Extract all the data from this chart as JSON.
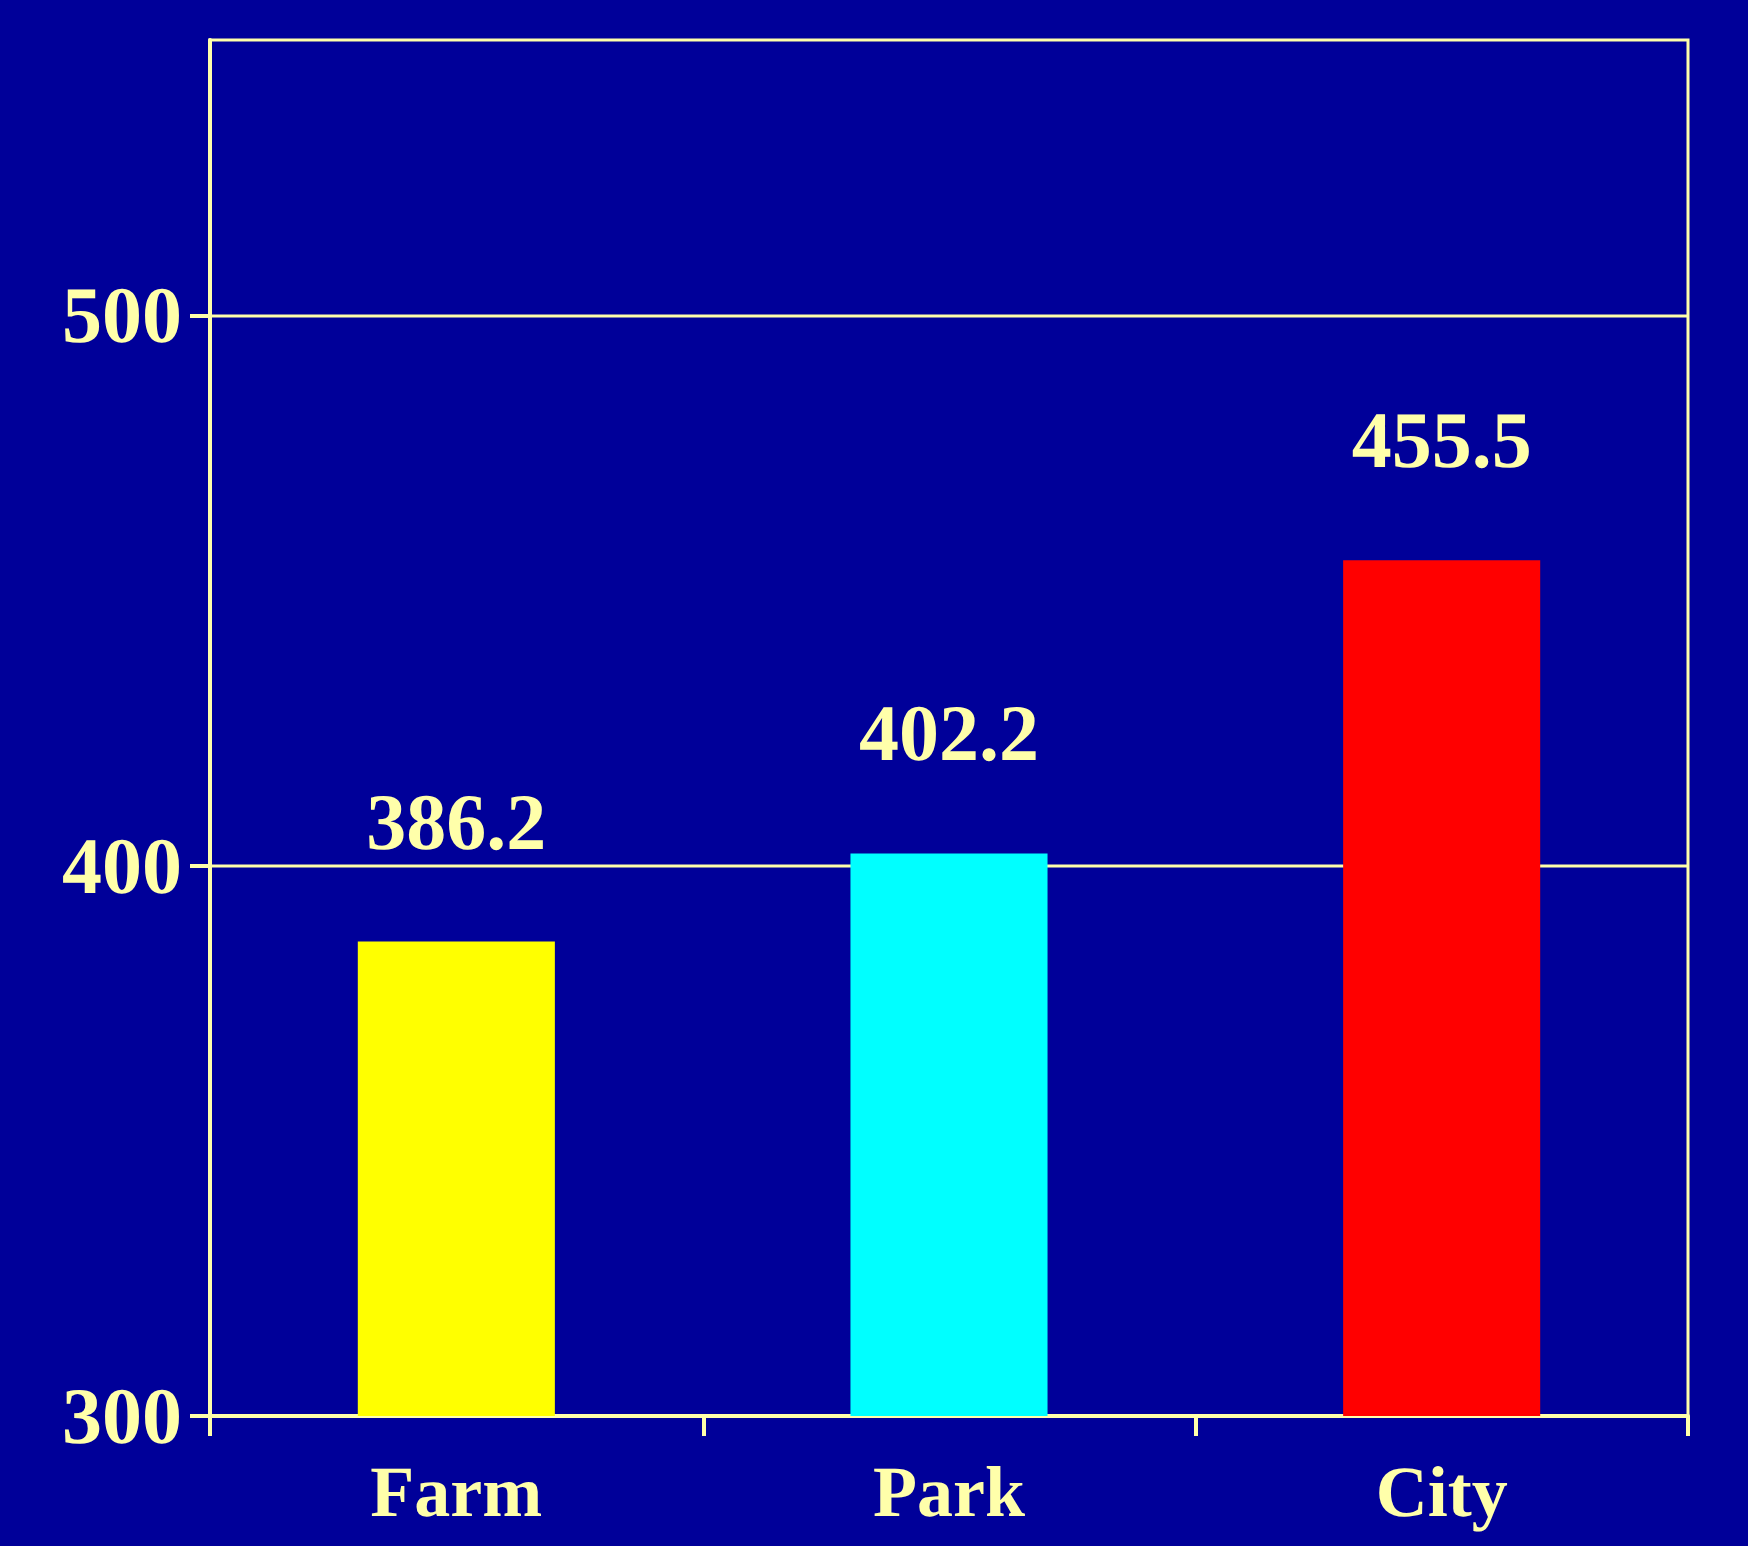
{
  "chart_data": {
    "type": "bar",
    "categories": [
      "Farm",
      "Park",
      "City"
    ],
    "values": [
      386.2,
      402.2,
      455.5
    ],
    "colors": [
      "#ffff00",
      "#00ffff",
      "#ff0000"
    ],
    "ylim": [
      300,
      550
    ],
    "yticks": [
      300,
      400,
      500
    ],
    "grid": "y",
    "data_labels": true
  }
}
